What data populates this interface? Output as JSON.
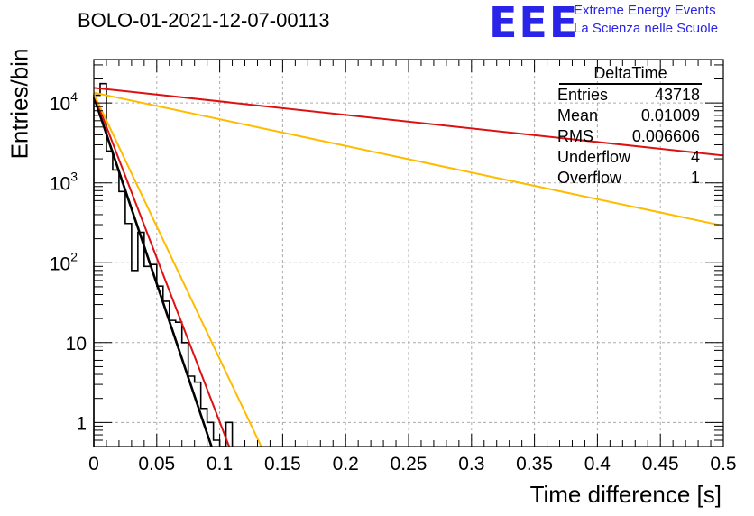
{
  "title": "BOLO-01-2021-12-07-00113",
  "logo": {
    "mark": "EEE",
    "line1": "Extreme Energy Events",
    "line2": "La Scienza nelle Scuole",
    "color": "#2a24e8"
  },
  "stats_box": {
    "title": "DeltaTime",
    "rows": [
      {
        "label": "Entries",
        "value": "43718"
      },
      {
        "label": "Mean",
        "value": "0.01009"
      },
      {
        "label": "RMS",
        "value": "0.006606"
      },
      {
        "label": "Underflow",
        "value": "4"
      },
      {
        "label": "Overflow",
        "value": "1"
      }
    ]
  },
  "chart_data": {
    "type": "line",
    "title": "BOLO-01-2021-12-07-00113",
    "xlabel": "Time difference [s]",
    "ylabel": "Entries/bin",
    "xlim": [
      0,
      0.5
    ],
    "ylim": [
      0.5,
      35000
    ],
    "y_scale": "log",
    "grid": true,
    "x_ticks": [
      "0",
      "0.05",
      "0.1",
      "0.15",
      "0.2",
      "0.25",
      "0.3",
      "0.35",
      "0.4",
      "0.45",
      "0.5"
    ],
    "y_ticks": [
      {
        "value": 1,
        "base": "1",
        "exp": ""
      },
      {
        "value": 10,
        "base": "10",
        "exp": ""
      },
      {
        "value": 100,
        "base": "10",
        "exp": "2"
      },
      {
        "value": 1000,
        "base": "10",
        "exp": "3"
      },
      {
        "value": 10000,
        "base": "10",
        "exp": "4"
      }
    ],
    "histogram": {
      "bin_width": 0.005,
      "color": "#000000",
      "counts": [
        12500,
        17500,
        2500,
        1450,
        780,
        310,
        80,
        240,
        90,
        95,
        51,
        33,
        19,
        18,
        10,
        3.8,
        3.2,
        1.5,
        1.0,
        0.6,
        0.4,
        1.0
      ]
    },
    "series": [
      {
        "color": "#000000",
        "x": [
          0,
          0.0935
        ],
        "y": [
          12000,
          0.5
        ]
      },
      {
        "color": "#dd1111",
        "x": [
          0,
          0.1075
        ],
        "y": [
          13000,
          0.5
        ]
      },
      {
        "color": "#ffbb00",
        "x": [
          0,
          0.133
        ],
        "y": [
          13000,
          0.5
        ]
      },
      {
        "color": "#dd1111",
        "x": [
          0,
          0.5
        ],
        "y": [
          15500,
          2200
        ]
      },
      {
        "color": "#ffbb00",
        "x": [
          0,
          0.5
        ],
        "y": [
          13500,
          290
        ]
      }
    ]
  }
}
